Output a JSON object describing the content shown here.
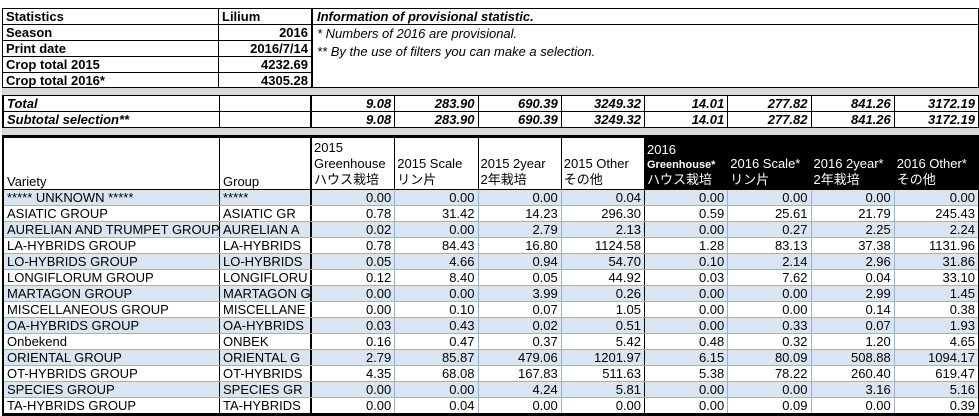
{
  "colors": {
    "row_alt": "#dbe5f1",
    "grid_blue": "#95b3d7",
    "header_2016_bg": "#000000",
    "band_gray": "#d9d9d9",
    "ink": "#000000",
    "paper": "#ffffff"
  },
  "info_table": {
    "rows": [
      {
        "label": "Statistics",
        "value": "Lilium"
      },
      {
        "label": "Season",
        "value": "2016"
      },
      {
        "label": "Print date",
        "value": "2016/7/14"
      },
      {
        "label": "Crop total 2015",
        "value": "4232.69"
      },
      {
        "label": "Crop total 2016*",
        "value": "4305.28"
      }
    ]
  },
  "notes": {
    "title": "Information of provisional statistic.",
    "lines": [
      "*   Numbers of 2016 are provisional.",
      "** By the use of filters you can make a selection."
    ]
  },
  "totals": {
    "rows": [
      {
        "label": "Total",
        "values": [
          "9.08",
          "283.90",
          "690.39",
          "3249.32",
          "14.01",
          "277.82",
          "841.26",
          "3172.19"
        ]
      },
      {
        "label": "Subtotal selection**",
        "values": [
          "9.08",
          "283.90",
          "690.39",
          "3249.32",
          "14.01",
          "277.82",
          "841.26",
          "3172.19"
        ]
      }
    ]
  },
  "table": {
    "variety_header": "Variety",
    "group_header": "Group",
    "columns": [
      {
        "id": "2015-greenhouse",
        "year": "2015",
        "lines": [
          "2015",
          "Greenhouse",
          "ハウス栽培"
        ]
      },
      {
        "id": "2015-scale",
        "year": "2015",
        "lines": [
          "2015 Scale",
          "リン片"
        ]
      },
      {
        "id": "2015-2year",
        "year": "2015",
        "lines": [
          "2015 2year",
          "2年栽培"
        ]
      },
      {
        "id": "2015-other",
        "year": "2015",
        "lines": [
          "2015 Other",
          "その他"
        ]
      },
      {
        "id": "2016-greenhouse",
        "year": "2016",
        "small_line": 1,
        "lines": [
          "2016",
          "Greenhouse*",
          "ハウス栽培"
        ]
      },
      {
        "id": "2016-scale",
        "year": "2016",
        "lines": [
          "2016 Scale*",
          "リン片"
        ]
      },
      {
        "id": "2016-2year",
        "year": "2016",
        "lines": [
          "2016 2year*",
          "2年栽培"
        ]
      },
      {
        "id": "2016-other",
        "year": "2016",
        "lines": [
          "2016 Other*",
          "その他"
        ]
      }
    ],
    "rows": [
      {
        "variety": "***** UNKNOWN *****",
        "group": "*****",
        "values": [
          "0.00",
          "0.00",
          "0.00",
          "0.04",
          "0.00",
          "0.00",
          "0.00",
          "0.00"
        ]
      },
      {
        "variety": "ASIATIC GROUP",
        "group": "ASIATIC GR",
        "values": [
          "0.78",
          "31.42",
          "14.23",
          "296.30",
          "0.59",
          "25.61",
          "21.79",
          "245.43"
        ]
      },
      {
        "variety": "AURELIAN AND TRUMPET GROUP",
        "group": "AURELIAN A",
        "values": [
          "0.02",
          "0.00",
          "2.79",
          "2.13",
          "0.00",
          "0.27",
          "2.25",
          "2.24"
        ]
      },
      {
        "variety": "LA-HYBRIDS GROUP",
        "group": "LA-HYBRIDS",
        "values": [
          "0.78",
          "84.43",
          "16.80",
          "1124.58",
          "1.28",
          "83.13",
          "37.38",
          "1131.96"
        ]
      },
      {
        "variety": "LO-HYBRIDS GROUP",
        "group": "LO-HYBRIDS",
        "values": [
          "0.05",
          "4.66",
          "0.94",
          "54.70",
          "0.10",
          "2.14",
          "2.96",
          "31.86"
        ]
      },
      {
        "variety": "LONGIFLORUM GROUP",
        "group": "LONGIFLORU",
        "values": [
          "0.12",
          "8.40",
          "0.05",
          "44.92",
          "0.03",
          "7.62",
          "0.04",
          "33.10"
        ]
      },
      {
        "variety": "MARTAGON GROUP",
        "group": "MARTAGON G",
        "values": [
          "0.00",
          "0.00",
          "3.99",
          "0.26",
          "0.00",
          "0.00",
          "2.99",
          "1.45"
        ]
      },
      {
        "variety": "MISCELLANEOUS GROUP",
        "group": "MISCELLANE",
        "values": [
          "0.00",
          "0.10",
          "0.07",
          "1.05",
          "0.00",
          "0.00",
          "0.14",
          "0.38"
        ]
      },
      {
        "variety": "OA-HYBRIDS GROUP",
        "group": "OA-HYBRIDS",
        "values": [
          "0.03",
          "0.43",
          "0.02",
          "0.51",
          "0.00",
          "0.33",
          "0.07",
          "1.93"
        ]
      },
      {
        "variety": "Onbekend",
        "group": "ONBEK",
        "values": [
          "0.16",
          "0.47",
          "0.37",
          "5.42",
          "0.48",
          "0.32",
          "1.20",
          "4.65"
        ]
      },
      {
        "variety": "ORIENTAL GROUP",
        "group": "ORIENTAL G",
        "values": [
          "2.79",
          "85.87",
          "479.06",
          "1201.97",
          "6.15",
          "80.09",
          "508.88",
          "1094.17"
        ]
      },
      {
        "variety": "OT-HYBRIDS GROUP",
        "group": "OT-HYBRIDS",
        "values": [
          "4.35",
          "68.08",
          "167.83",
          "511.63",
          "5.38",
          "78.22",
          "260.40",
          "619.47"
        ]
      },
      {
        "variety": "SPECIES GROUP",
        "group": "SPECIES GR",
        "values": [
          "0.00",
          "0.00",
          "4.24",
          "5.81",
          "0.00",
          "0.00",
          "3.16",
          "5.16"
        ]
      },
      {
        "variety": "TA-HYBRIDS GROUP",
        "group": "TA-HYBRIDS",
        "values": [
          "0.00",
          "0.04",
          "0.00",
          "0.00",
          "0.00",
          "0.09",
          "0.00",
          "0.39"
        ]
      }
    ]
  }
}
